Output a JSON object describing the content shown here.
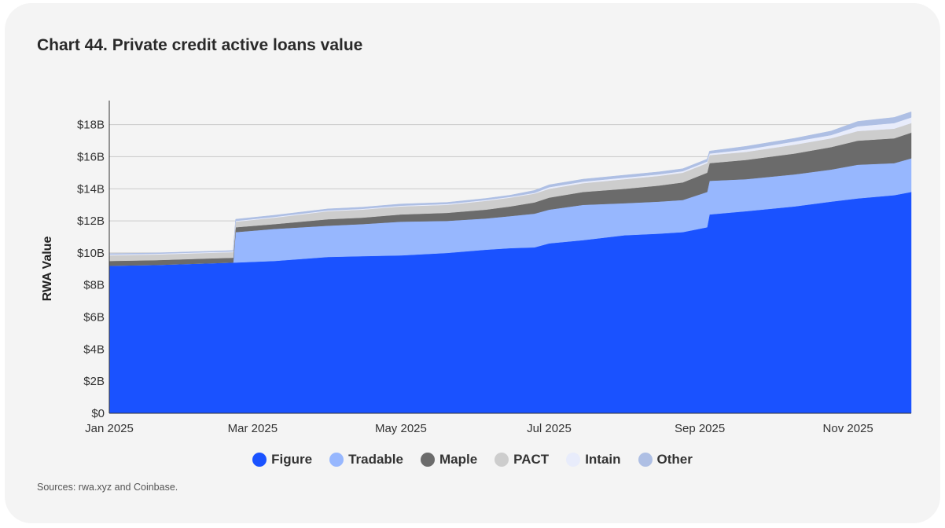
{
  "chart_data": {
    "type": "area",
    "stacked": true,
    "title": "Chart 44. Private credit active loans value",
    "ylabel": "RWA Value",
    "xlabel": "",
    "ylim": [
      0,
      19.5
    ],
    "yticks": [
      {
        "value": 0,
        "label": "$0"
      },
      {
        "value": 2,
        "label": "$2B"
      },
      {
        "value": 4,
        "label": "$4B"
      },
      {
        "value": 6,
        "label": "$6B"
      },
      {
        "value": 8,
        "label": "$8B"
      },
      {
        "value": 10,
        "label": "$10B"
      },
      {
        "value": 12,
        "label": "$12B"
      },
      {
        "value": 14,
        "label": "$14B"
      },
      {
        "value": 16,
        "label": "$16B"
      },
      {
        "value": 18,
        "label": "$18B"
      }
    ],
    "xticks": [
      {
        "date": "2025-01-01",
        "label": "Jan 2025"
      },
      {
        "date": "2025-03-01",
        "label": "Mar 2025"
      },
      {
        "date": "2025-05-01",
        "label": "May 2025"
      },
      {
        "date": "2025-07-01",
        "label": "Jul 2025"
      },
      {
        "date": "2025-09-01",
        "label": "Sep 2025"
      },
      {
        "date": "2025-11-01",
        "label": "Nov 2025"
      }
    ],
    "x": [
      "2025-01-01",
      "2025-01-20",
      "2025-02-10",
      "2025-02-21",
      "2025-02-22",
      "2025-03-10",
      "2025-04-01",
      "2025-04-15",
      "2025-05-01",
      "2025-05-20",
      "2025-06-05",
      "2025-06-15",
      "2025-06-25",
      "2025-07-01",
      "2025-07-15",
      "2025-08-01",
      "2025-08-15",
      "2025-08-25",
      "2025-09-04",
      "2025-09-05",
      "2025-09-20",
      "2025-10-10",
      "2025-10-25",
      "2025-11-05",
      "2025-11-20",
      "2025-11-27"
    ],
    "grid": true,
    "legend_position": "bottom",
    "series": [
      {
        "name": "Figure",
        "color": "#1a52ff",
        "values": [
          9.2,
          9.25,
          9.35,
          9.4,
          9.4,
          9.5,
          9.75,
          9.8,
          9.85,
          10.0,
          10.2,
          10.3,
          10.35,
          10.6,
          10.8,
          11.1,
          11.2,
          11.3,
          11.6,
          12.4,
          12.6,
          12.9,
          13.2,
          13.4,
          13.6,
          13.8
        ]
      },
      {
        "name": "Tradable",
        "color": "#97b7fe",
        "values": [
          0,
          0,
          0,
          0,
          1.9,
          2.0,
          1.95,
          2.0,
          2.1,
          2.0,
          1.95,
          2.0,
          2.1,
          2.1,
          2.2,
          2.0,
          2.0,
          2.0,
          2.2,
          2.1,
          2.0,
          2.0,
          2.0,
          2.1,
          2.0,
          2.1
        ]
      },
      {
        "name": "Maple",
        "color": "#6b6b6b",
        "values": [
          0.3,
          0.3,
          0.3,
          0.3,
          0.3,
          0.3,
          0.4,
          0.4,
          0.45,
          0.5,
          0.55,
          0.6,
          0.7,
          0.75,
          0.8,
          0.9,
          1.0,
          1.1,
          1.2,
          1.1,
          1.2,
          1.3,
          1.4,
          1.5,
          1.55,
          1.6
        ]
      },
      {
        "name": "PACT",
        "color": "#cdcdcd",
        "values": [
          0.35,
          0.35,
          0.35,
          0.35,
          0.35,
          0.4,
          0.5,
          0.5,
          0.5,
          0.5,
          0.55,
          0.55,
          0.55,
          0.55,
          0.55,
          0.6,
          0.6,
          0.6,
          0.6,
          0.5,
          0.5,
          0.55,
          0.55,
          0.6,
          0.6,
          0.6
        ]
      },
      {
        "name": "Intain",
        "color": "#e8ecfb",
        "values": [
          0.05,
          0.05,
          0.05,
          0.05,
          0.05,
          0.05,
          0.05,
          0.05,
          0.05,
          0.05,
          0.05,
          0.05,
          0.05,
          0.1,
          0.1,
          0.1,
          0.1,
          0.1,
          0.1,
          0.1,
          0.15,
          0.2,
          0.2,
          0.3,
          0.35,
          0.35
        ]
      },
      {
        "name": "Other",
        "color": "#aebfe4",
        "values": [
          0.05,
          0.05,
          0.05,
          0.05,
          0.1,
          0.1,
          0.1,
          0.1,
          0.1,
          0.1,
          0.1,
          0.1,
          0.15,
          0.15,
          0.15,
          0.15,
          0.15,
          0.15,
          0.15,
          0.15,
          0.2,
          0.2,
          0.25,
          0.3,
          0.35,
          0.35
        ]
      }
    ]
  },
  "footer": {
    "source": "Sources: rwa.xyz and Coinbase."
  }
}
